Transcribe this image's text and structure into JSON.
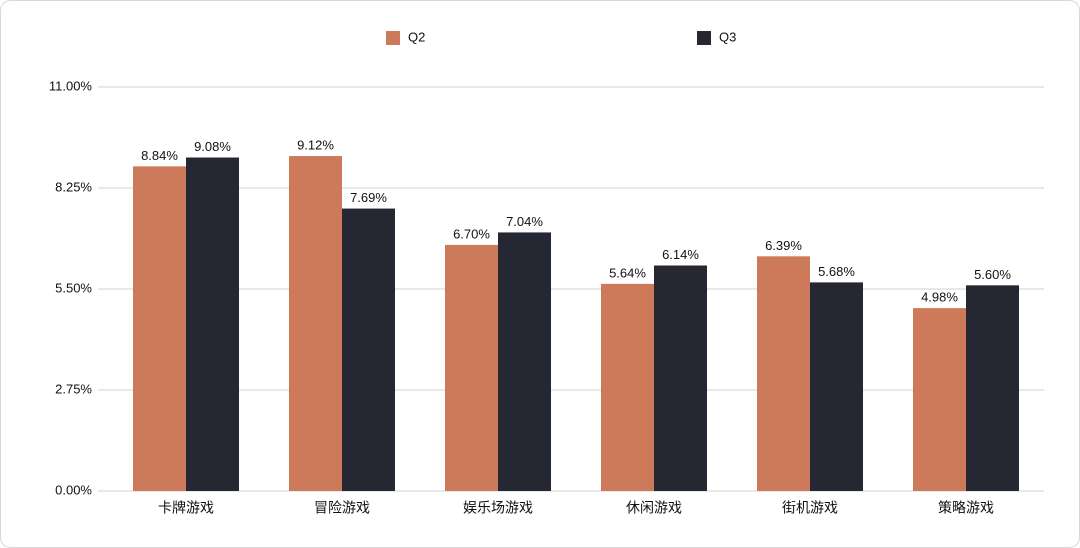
{
  "chart_data": {
    "type": "bar",
    "categories": [
      "卡牌游戏",
      "冒险游戏",
      "娱乐场游戏",
      "休闲游戏",
      "街机游戏",
      "策略游戏"
    ],
    "series": [
      {
        "name": "Q2",
        "color": "#cd7a5a",
        "values": [
          8.84,
          9.12,
          6.7,
          5.64,
          6.39,
          4.98
        ],
        "value_labels": [
          "8.84%",
          "9.12%",
          "6.70%",
          "5.64%",
          "6.39%",
          "4.98%"
        ]
      },
      {
        "name": "Q3",
        "color": "#252733",
        "values": [
          9.08,
          7.69,
          7.04,
          6.14,
          5.68,
          5.6
        ],
        "value_labels": [
          "9.08%",
          "7.69%",
          "7.04%",
          "6.14%",
          "5.68%",
          "5.60%"
        ]
      }
    ],
    "ylim": [
      0,
      11
    ],
    "yticks": [
      {
        "value": 0,
        "label": "0.00%"
      },
      {
        "value": 2.75,
        "label": "2.75%"
      },
      {
        "value": 5.5,
        "label": "5.50%"
      },
      {
        "value": 8.25,
        "label": "8.25%"
      },
      {
        "value": 11,
        "label": "11.00%"
      }
    ],
    "grid": true
  }
}
